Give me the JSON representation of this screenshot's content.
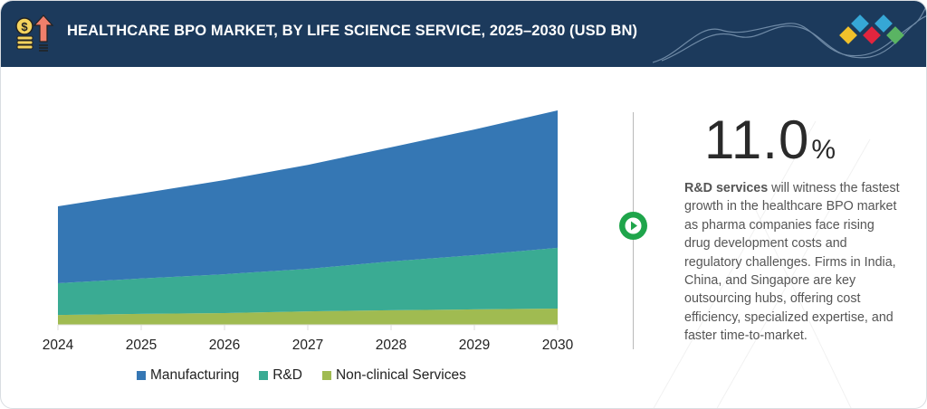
{
  "header": {
    "title": "HEALTHCARE BPO MARKET, BY LIFE SCIENCE SERVICE, 2025–2030 (USD BN)",
    "icon": "money-growth-icon",
    "logo": "brand-diamonds-logo"
  },
  "colors": {
    "header_bg": "#1c3a5c",
    "manufacturing": "#3577b4",
    "rnd": "#3aab93",
    "nonclinical": "#a0bb51",
    "accent_green": "#1fa54b"
  },
  "chart_data": {
    "type": "area",
    "stacked": true,
    "title": "HEALTHCARE BPO MARKET, BY LIFE SCIENCE SERVICE, 2025–2030 (USD BN)",
    "xlabel": "",
    "ylabel": "",
    "y_axis_shown": false,
    "grid": false,
    "x": [
      "2024",
      "2025",
      "2026",
      "2027",
      "2028",
      "2029",
      "2030"
    ],
    "units_note": "relative values estimated from area heights (no y-axis labels shown)",
    "series": [
      {
        "name": "Non-clinical Services",
        "values": [
          4.6,
          5.1,
          5.5,
          6.3,
          6.8,
          7.2,
          7.6
        ]
      },
      {
        "name": "R&D",
        "values": [
          14.8,
          16.5,
          18.1,
          19.8,
          22.8,
          25.3,
          28.3
        ]
      },
      {
        "name": "Manufacturing",
        "values": [
          35.9,
          39.7,
          43.9,
          48.5,
          53.2,
          58.6,
          64.1
        ]
      }
    ],
    "ylim": [
      0,
      100
    ],
    "legend": {
      "placement": "bottom",
      "entries": [
        "Manufacturing",
        "R&D",
        "Non-clinical Services"
      ]
    }
  },
  "insight": {
    "cagr": "11.0",
    "cagr_suffix": "%",
    "bold_lead": "R&D services",
    "text": " will witness the fastest growth in the healthcare BPO market as pharma companies face rising drug development costs and regulatory challenges. Firms in India, China, and Singapore are key outsourcing hubs, offering cost efficiency, specialized expertise, and faster time-to-market."
  }
}
